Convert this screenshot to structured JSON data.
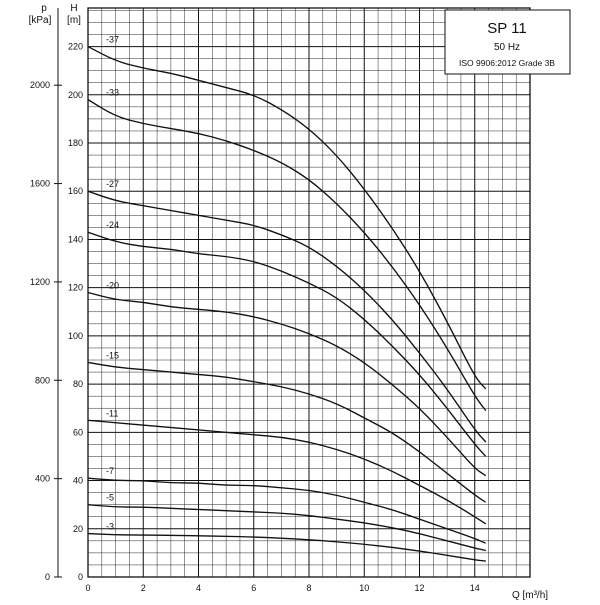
{
  "chart_data": {
    "type": "line",
    "title": "SP 11",
    "subtitle": "50 Hz",
    "standard": "ISO 9906:2012 Grade 3B",
    "xlabel": "Q [m³/h]",
    "ylabel": "H",
    "ylabel_unit": "[m]",
    "y2label": "p",
    "y2label_unit": "[kPa]",
    "xlim": [
      0,
      16
    ],
    "ylim": [
      0,
      236
    ],
    "y2lim": [
      0,
      2314
    ],
    "x_ticks": [
      "0",
      "2",
      "4",
      "6",
      "8",
      "10",
      "12",
      "14"
    ],
    "y_ticks": [
      "0",
      "20",
      "40",
      "60",
      "80",
      "100",
      "120",
      "140",
      "160",
      "180",
      "200",
      "220"
    ],
    "y2_ticks": [
      "0",
      "400",
      "800",
      "1200",
      "1600",
      "2000"
    ],
    "grid": true,
    "series": [
      {
        "name": "-37",
        "x": [
          0,
          1,
          2,
          3,
          4,
          5,
          6,
          7,
          8,
          9,
          10,
          11,
          12,
          13,
          14,
          14.4
        ],
        "y": [
          220,
          214,
          211,
          209,
          206,
          203,
          200,
          194,
          186,
          175,
          161,
          145,
          127,
          106,
          83,
          78
        ]
      },
      {
        "name": "-33",
        "x": [
          0,
          1,
          2,
          3,
          4,
          5,
          6,
          7,
          8,
          9,
          10,
          11,
          12,
          13,
          14,
          14.4
        ],
        "y": [
          198,
          191,
          188,
          186,
          184,
          181,
          177,
          172,
          165,
          155,
          143,
          129,
          113,
          95,
          75,
          69
        ]
      },
      {
        "name": "-27",
        "x": [
          0,
          1,
          2,
          3,
          4,
          5,
          6,
          7,
          8,
          9,
          10,
          11,
          12,
          13,
          14,
          14.4
        ],
        "y": [
          160,
          156,
          154,
          152,
          150,
          148,
          146,
          142,
          137,
          129,
          119,
          107,
          93,
          78,
          61,
          56
        ]
      },
      {
        "name": "-24",
        "x": [
          0,
          1,
          2,
          3,
          4,
          5,
          6,
          7,
          8,
          9,
          10,
          11,
          12,
          13,
          14,
          14.4
        ],
        "y": [
          143,
          139,
          137,
          136,
          134,
          133,
          131,
          127,
          122,
          116,
          107,
          96,
          84,
          70,
          55,
          50
        ]
      },
      {
        "name": "-20",
        "x": [
          0,
          1,
          2,
          3,
          4,
          5,
          6,
          7,
          8,
          9,
          10,
          11,
          12,
          13,
          14,
          14.4
        ],
        "y": [
          118,
          115,
          114,
          112,
          111,
          110,
          108,
          105,
          101,
          96,
          89,
          80,
          70,
          58,
          45,
          42
        ]
      },
      {
        "name": "-15",
        "x": [
          0,
          1,
          2,
          3,
          4,
          5,
          6,
          7,
          8,
          9,
          10,
          11,
          12,
          13,
          14,
          14.4
        ],
        "y": [
          89,
          87,
          86,
          85,
          84,
          83,
          81,
          79,
          76,
          72,
          66,
          60,
          52,
          43,
          34,
          31
        ]
      },
      {
        "name": "-11",
        "x": [
          0,
          1,
          2,
          3,
          4,
          5,
          6,
          7,
          8,
          9,
          10,
          11,
          12,
          13,
          14,
          14.4
        ],
        "y": [
          65,
          64,
          63,
          62,
          61,
          60,
          59,
          58,
          56,
          53,
          49,
          44,
          38,
          32,
          25,
          22
        ]
      },
      {
        "name": "-7",
        "x": [
          0,
          1,
          2,
          3,
          4,
          5,
          6,
          7,
          8,
          9,
          10,
          11,
          12,
          13,
          14,
          14.4
        ],
        "y": [
          41,
          40,
          40,
          39,
          39,
          38,
          38,
          37,
          36,
          34,
          31,
          28,
          24,
          20,
          16,
          14
        ]
      },
      {
        "name": "-5",
        "x": [
          0,
          1,
          2,
          3,
          4,
          5,
          6,
          7,
          8,
          9,
          10,
          11,
          12,
          13,
          14,
          14.4
        ],
        "y": [
          30,
          29,
          29,
          28.5,
          28,
          27.5,
          27,
          26.5,
          25.5,
          24,
          22.5,
          20.5,
          18,
          15,
          12,
          11
        ]
      },
      {
        "name": "-3",
        "x": [
          0,
          1,
          2,
          3,
          4,
          5,
          6,
          7,
          8,
          9,
          10,
          11,
          12,
          13,
          14,
          14.4
        ],
        "y": [
          18,
          17.5,
          17.4,
          17.3,
          17.1,
          16.9,
          16.6,
          16.1,
          15.5,
          14.6,
          13.6,
          12.3,
          10.8,
          9,
          7.1,
          6.6
        ]
      }
    ]
  }
}
